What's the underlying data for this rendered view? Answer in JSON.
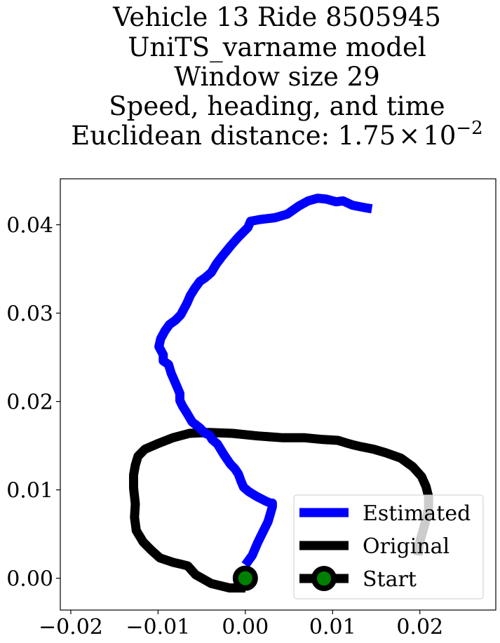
{
  "chart_data": {
    "type": "line",
    "title_lines": [
      "Vehicle 13 Ride 8505945",
      "UniTS_varname model",
      "Window size 29",
      "Speed, heading, and time"
    ],
    "title_metric_prefix": "Euclidean distance: ",
    "title_metric_mantissa": "1.75",
    "title_metric_times": "×",
    "title_metric_base": "10",
    "title_metric_exponent": "−2",
    "xlabel": "",
    "ylabel": "",
    "xlim": [
      -0.0212,
      0.0287
    ],
    "ylim": [
      -0.0036,
      0.0452
    ],
    "xticks": [
      {
        "value": -0.02,
        "label": "−0.02"
      },
      {
        "value": -0.01,
        "label": "−0.01"
      },
      {
        "value": 0.0,
        "label": "0.00"
      },
      {
        "value": 0.01,
        "label": "0.01"
      },
      {
        "value": 0.02,
        "label": "0.02"
      }
    ],
    "yticks": [
      {
        "value": 0.0,
        "label": "0.00"
      },
      {
        "value": 0.01,
        "label": "0.01"
      },
      {
        "value": 0.02,
        "label": "0.02"
      },
      {
        "value": 0.03,
        "label": "0.03"
      },
      {
        "value": 0.04,
        "label": "0.04"
      }
    ],
    "grid": false,
    "legend_position": "lower-right",
    "series": [
      {
        "name": "Estimated",
        "color": "#0000ff",
        "x": [
          0.0,
          0.0008,
          0.0014,
          0.002,
          0.0026,
          0.0029,
          0.0031,
          0.0031,
          0.0029,
          0.0024,
          0.0014,
          0.0009,
          0.0004,
          -0.0002,
          -0.0005,
          -0.0008,
          -0.0012,
          -0.0017,
          -0.0024,
          -0.0032,
          -0.0038,
          -0.0041,
          -0.0046,
          -0.0052,
          -0.0061,
          -0.0067,
          -0.0072,
          -0.0075,
          -0.0075,
          -0.0078,
          -0.0081,
          -0.0085,
          -0.0088,
          -0.0094,
          -0.0094,
          -0.0099,
          -0.0097,
          -0.0092,
          -0.0087,
          -0.008,
          -0.0074,
          -0.0067,
          -0.0063,
          -0.0058,
          -0.0052,
          -0.0046,
          -0.0039,
          -0.0033,
          -0.0026,
          -0.0016,
          -0.0008,
          0.0003,
          0.0006,
          0.0017,
          0.0034,
          0.0048,
          0.0061,
          0.0072,
          0.0083,
          0.0093,
          0.0104,
          0.0112,
          0.0123,
          0.0139,
          0.0145
        ],
        "y": [
          0.0015,
          0.0026,
          0.004,
          0.0052,
          0.0064,
          0.0074,
          0.0081,
          0.0085,
          0.0085,
          0.0087,
          0.0092,
          0.0095,
          0.0098,
          0.0103,
          0.011,
          0.0118,
          0.0124,
          0.0129,
          0.0139,
          0.0152,
          0.0157,
          0.0162,
          0.0164,
          0.017,
          0.0177,
          0.0187,
          0.0195,
          0.0201,
          0.0209,
          0.0216,
          0.0223,
          0.0232,
          0.0242,
          0.0246,
          0.0253,
          0.0262,
          0.0271,
          0.028,
          0.0287,
          0.0292,
          0.0298,
          0.0311,
          0.032,
          0.0328,
          0.0336,
          0.034,
          0.0346,
          0.0356,
          0.0365,
          0.0377,
          0.0386,
          0.0397,
          0.0404,
          0.0406,
          0.0408,
          0.0412,
          0.0421,
          0.0427,
          0.043,
          0.0429,
          0.0426,
          0.0427,
          0.0422,
          0.0419,
          0.0418
        ]
      },
      {
        "name": "Original",
        "color": "#000000",
        "x": [
          0.0,
          -0.0018,
          -0.0039,
          -0.0057,
          -0.0066,
          -0.0074,
          -0.0083,
          -0.0098,
          -0.0108,
          -0.0117,
          -0.0125,
          -0.0127,
          -0.0126,
          -0.0128,
          -0.0128,
          -0.0126,
          -0.0123,
          -0.0115,
          -0.0101,
          -0.0083,
          -0.0064,
          -0.0042,
          -0.0015,
          0.0014,
          0.0043,
          0.0068,
          0.0089,
          0.0106,
          0.0116,
          0.0123,
          0.0132,
          0.0147,
          0.0161,
          0.0178,
          0.0192,
          0.0202,
          0.0207,
          0.021,
          0.021,
          0.0207,
          0.0203,
          0.0199,
          0.0198
        ],
        "y": [
          -0.0011,
          -0.0011,
          -0.0006,
          0.0004,
          0.0014,
          0.0016,
          0.0018,
          0.0023,
          0.0032,
          0.0041,
          0.0054,
          0.0069,
          0.0084,
          0.0102,
          0.0117,
          0.0128,
          0.0138,
          0.0146,
          0.0152,
          0.0159,
          0.0164,
          0.0165,
          0.0164,
          0.0161,
          0.0159,
          0.0159,
          0.0157,
          0.0156,
          0.0153,
          0.0151,
          0.0149,
          0.0146,
          0.0142,
          0.0136,
          0.0126,
          0.0115,
          0.0104,
          0.0092,
          0.0079,
          0.0066,
          0.0052,
          0.0038,
          0.0026
        ]
      },
      {
        "name": "Start",
        "color": "#000000",
        "marker_color": "#008000",
        "x": [
          0.0
        ],
        "y": [
          0.0
        ]
      }
    ]
  }
}
